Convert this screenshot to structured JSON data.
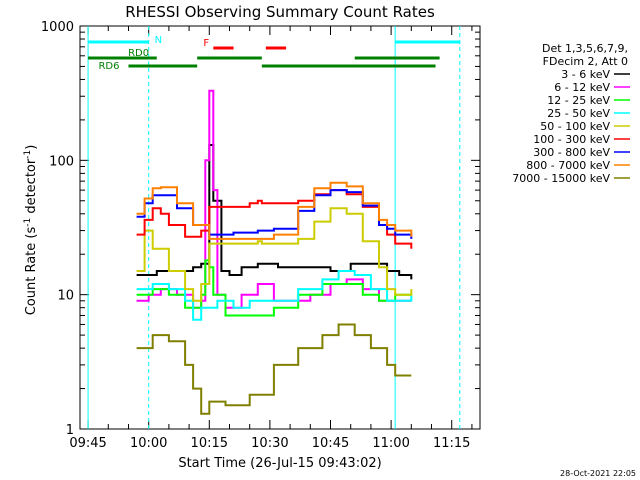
{
  "chart_data": {
    "type": "line",
    "title": "RHESSI Observing Summary Count Rates",
    "xlabel": "Start Time (26-Jul-15 09:43:02)",
    "ylabel": "Count Rate (s⁻¹ detector⁻¹)",
    "ylabel_main": "Count Rate (s",
    "ylabel_sup1": "-1",
    "ylabel_mid": " detector",
    "ylabel_sup2": "-1",
    "ylabel_end": ")",
    "yscale": "log",
    "ylim": [
      1,
      1000
    ],
    "xlim_minutes": [
      -2,
      97
    ],
    "x_ticks": [
      {
        "label": "09:45",
        "min": 0
      },
      {
        "label": "10:00",
        "min": 15
      },
      {
        "label": "10:15",
        "min": 30
      },
      {
        "label": "10:30",
        "min": 45
      },
      {
        "label": "10:45",
        "min": 60
      },
      {
        "label": "11:00",
        "min": 75
      },
      {
        "label": "11:15",
        "min": 90
      }
    ],
    "y_ticks": [
      {
        "label": "1",
        "value": 1
      },
      {
        "label": "10",
        "value": 10
      },
      {
        "label": "100",
        "value": 100
      },
      {
        "label": "1000",
        "value": 1000
      }
    ],
    "timestamp": "28-Oct-2021 22:05",
    "legend_header": [
      "Det 1,3,5,6,7,9,",
      "FDecim 2, Att 0"
    ],
    "series": [
      {
        "name": "3 - 6 keV",
        "color": "#000000",
        "values": [
          [
            12,
            14
          ],
          [
            17,
            15
          ],
          [
            22,
            15
          ],
          [
            26,
            16
          ],
          [
            28,
            17
          ],
          [
            30,
            130
          ],
          [
            31,
            50
          ],
          [
            33,
            15
          ],
          [
            35,
            14
          ],
          [
            38,
            16
          ],
          [
            42,
            17
          ],
          [
            47,
            16
          ],
          [
            55,
            16
          ],
          [
            60,
            15
          ],
          [
            65,
            17
          ],
          [
            70,
            17
          ],
          [
            74,
            15
          ],
          [
            77,
            14
          ],
          [
            80,
            13
          ]
        ]
      },
      {
        "name": "6 - 12 keV",
        "color": "#ff00ff",
        "values": [
          [
            12,
            9
          ],
          [
            15,
            10
          ],
          [
            18,
            11
          ],
          [
            22,
            10
          ],
          [
            26,
            8
          ],
          [
            28,
            9
          ],
          [
            29,
            100
          ],
          [
            30,
            330
          ],
          [
            31,
            60
          ],
          [
            32,
            10
          ],
          [
            34,
            8
          ],
          [
            38,
            10
          ],
          [
            42,
            12
          ],
          [
            46,
            9
          ],
          [
            50,
            9
          ],
          [
            55,
            10
          ],
          [
            60,
            12
          ],
          [
            64,
            13
          ],
          [
            68,
            11
          ],
          [
            72,
            9
          ],
          [
            76,
            9
          ],
          [
            80,
            9
          ]
        ]
      },
      {
        "name": "12 - 25 keV",
        "color": "#00ff00",
        "values": [
          [
            12,
            10
          ],
          [
            16,
            11
          ],
          [
            20,
            10
          ],
          [
            24,
            8
          ],
          [
            28,
            10
          ],
          [
            29,
            18
          ],
          [
            30,
            16
          ],
          [
            31,
            10
          ],
          [
            34,
            7
          ],
          [
            40,
            7
          ],
          [
            46,
            8
          ],
          [
            52,
            10
          ],
          [
            58,
            12
          ],
          [
            62,
            12
          ],
          [
            68,
            10
          ],
          [
            72,
            9
          ],
          [
            76,
            10
          ],
          [
            80,
            10
          ]
        ]
      },
      {
        "name": "25 - 50 keV",
        "color": "#00ffff",
        "values": [
          [
            12,
            11
          ],
          [
            16,
            12
          ],
          [
            20,
            11
          ],
          [
            24,
            9
          ],
          [
            26,
            6.5
          ],
          [
            28,
            8
          ],
          [
            32,
            9
          ],
          [
            36,
            8
          ],
          [
            40,
            9
          ],
          [
            46,
            9
          ],
          [
            52,
            11
          ],
          [
            58,
            13
          ],
          [
            62,
            15
          ],
          [
            66,
            14
          ],
          [
            70,
            11
          ],
          [
            74,
            9
          ],
          [
            76,
            9
          ],
          [
            80,
            10
          ]
        ]
      },
      {
        "name": "50 - 100 keV",
        "color": "#cccc00",
        "values": [
          [
            12,
            15
          ],
          [
            14,
            30
          ],
          [
            16,
            22
          ],
          [
            20,
            15
          ],
          [
            24,
            11
          ],
          [
            26,
            9
          ],
          [
            28,
            12
          ],
          [
            30,
            24
          ],
          [
            34,
            24
          ],
          [
            40,
            24
          ],
          [
            42,
            25
          ],
          [
            43,
            24
          ],
          [
            46,
            24
          ],
          [
            52,
            26
          ],
          [
            56,
            35
          ],
          [
            60,
            44
          ],
          [
            64,
            40
          ],
          [
            68,
            25
          ],
          [
            72,
            16
          ],
          [
            74,
            11
          ],
          [
            76,
            10
          ],
          [
            80,
            11
          ]
        ]
      },
      {
        "name": "100 - 300 keV",
        "color": "#ff0000",
        "values": [
          [
            12,
            28
          ],
          [
            14,
            36
          ],
          [
            16,
            44
          ],
          [
            18,
            40
          ],
          [
            20,
            33
          ],
          [
            24,
            27
          ],
          [
            28,
            30
          ],
          [
            30,
            45
          ],
          [
            35,
            45
          ],
          [
            40,
            48
          ],
          [
            42,
            50
          ],
          [
            43,
            48
          ],
          [
            46,
            48
          ],
          [
            52,
            50
          ],
          [
            56,
            56
          ],
          [
            60,
            60
          ],
          [
            64,
            56
          ],
          [
            68,
            45
          ],
          [
            72,
            33
          ],
          [
            74,
            28
          ],
          [
            76,
            24
          ],
          [
            80,
            22
          ]
        ]
      },
      {
        "name": "300 - 800 keV",
        "color": "#0000ff",
        "values": [
          [
            12,
            38
          ],
          [
            14,
            48
          ],
          [
            16,
            55
          ],
          [
            18,
            55
          ],
          [
            22,
            44
          ],
          [
            26,
            33
          ],
          [
            30,
            28
          ],
          [
            36,
            29
          ],
          [
            42,
            30
          ],
          [
            46,
            31
          ],
          [
            52,
            42
          ],
          [
            56,
            55
          ],
          [
            60,
            60
          ],
          [
            64,
            58
          ],
          [
            68,
            46
          ],
          [
            72,
            33
          ],
          [
            74,
            31
          ],
          [
            76,
            28
          ],
          [
            80,
            26
          ]
        ]
      },
      {
        "name": "800 - 7000 keV",
        "color": "#ff8000",
        "values": [
          [
            12,
            40
          ],
          [
            14,
            52
          ],
          [
            16,
            62
          ],
          [
            18,
            63
          ],
          [
            22,
            48
          ],
          [
            26,
            33
          ],
          [
            30,
            26
          ],
          [
            36,
            26
          ],
          [
            42,
            26
          ],
          [
            46,
            28
          ],
          [
            52,
            45
          ],
          [
            56,
            62
          ],
          [
            60,
            68
          ],
          [
            64,
            64
          ],
          [
            68,
            48
          ],
          [
            72,
            36
          ],
          [
            74,
            33
          ],
          [
            76,
            30
          ],
          [
            80,
            27
          ]
        ]
      },
      {
        "name": "7000 - 15000 keV",
        "color": "#808000",
        "values": [
          [
            12,
            4
          ],
          [
            16,
            5
          ],
          [
            20,
            4.5
          ],
          [
            24,
            3
          ],
          [
            26,
            2
          ],
          [
            28,
            1.3
          ],
          [
            30,
            1.6
          ],
          [
            34,
            1.5
          ],
          [
            40,
            1.8
          ],
          [
            46,
            3
          ],
          [
            52,
            4
          ],
          [
            58,
            5
          ],
          [
            62,
            6
          ],
          [
            66,
            5
          ],
          [
            70,
            4
          ],
          [
            74,
            3
          ],
          [
            76,
            2.5
          ],
          [
            80,
            2.5
          ]
        ]
      }
    ],
    "flags": [
      {
        "name": "N",
        "color": "#00ffff",
        "segments": [
          [
            0,
            15
          ],
          [
            76,
            92
          ]
        ]
      },
      {
        "name": "RD0",
        "color": "#008000",
        "segments": [
          [
            0,
            17
          ],
          [
            27,
            43
          ],
          [
            66,
            87
          ]
        ]
      },
      {
        "name": "RD6",
        "color": "#008000",
        "segments": [
          [
            10,
            27
          ],
          [
            43,
            60
          ],
          [
            60,
            86
          ]
        ]
      },
      {
        "name": "F",
        "color": "#ff0000",
        "segments": [
          [
            31,
            36
          ],
          [
            44,
            49
          ]
        ]
      }
    ]
  }
}
